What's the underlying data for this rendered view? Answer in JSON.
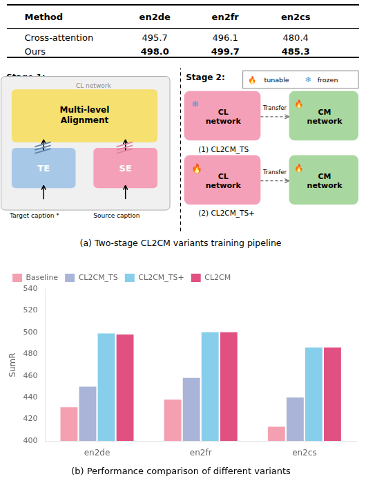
{
  "chart_data": [
    {
      "type": "table",
      "columns": [
        "Method",
        "en2de",
        "en2fr",
        "en2cs"
      ],
      "rows": [
        [
          "Cross-attention",
          "495.7",
          "496.1",
          "480.4"
        ],
        [
          "Ours",
          "498.0",
          "499.7",
          "485.3"
        ]
      ]
    },
    {
      "type": "diagram",
      "title": "(a) Two-stage CL2CM variants training pipeline",
      "annotations": [
        "Stage 1:",
        "CL network",
        "Multi-level\nAlignment",
        "TE",
        "SE",
        "Target caption *",
        "Source caption",
        "Stage 2:",
        "🔥",
        "tunable",
        "❄",
        "frozen",
        "❄",
        "CL\nnetwork",
        "Transfer",
        "🔥",
        "CM\nnetwork",
        "(1) CL2CM_TS",
        "🔥",
        "CL\nnetwork",
        "Transfer",
        "🔥",
        "CM\nnetwork",
        "(2) CL2CM_TS+"
      ]
    },
    {
      "type": "bar",
      "title": "(b) Performance comparison of different variants",
      "categories": [
        "en2de",
        "en2fr",
        "en2cs"
      ],
      "series": [
        {
          "name": "Baseline",
          "values": [
            431,
            438,
            413
          ],
          "color": "#f4a0b0"
        },
        {
          "name": "CL2CM_TS",
          "values": [
            450,
            458,
            440
          ],
          "color": "#aab4d8"
        },
        {
          "name": "CL2CM_TS+",
          "values": [
            499,
            500,
            486
          ],
          "color": "#87ceeb"
        },
        {
          "name": "CL2CM",
          "values": [
            498,
            500,
            486
          ],
          "color": "#e05080"
        }
      ],
      "ylabel": "SumR",
      "ylim": [
        400,
        540
      ],
      "yticks": [
        400,
        420,
        440,
        460,
        480,
        500,
        520,
        540
      ],
      "grid": false,
      "legend": "upper left"
    }
  ]
}
